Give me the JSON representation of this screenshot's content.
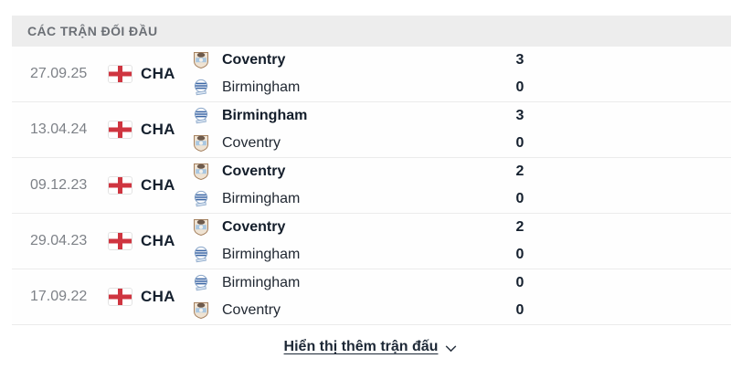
{
  "section": {
    "title": "CÁC TRẬN ĐỐI ĐẦU"
  },
  "matches": [
    {
      "date": "27.09.25",
      "league": {
        "code": "CHA",
        "flag": "england-flag-icon"
      },
      "teams": [
        {
          "name": "Coventry",
          "logo": "coventry-crest-icon",
          "score": "3",
          "winner": true
        },
        {
          "name": "Birmingham",
          "logo": "birmingham-crest-icon",
          "score": "0",
          "winner": false
        }
      ]
    },
    {
      "date": "13.04.24",
      "league": {
        "code": "CHA",
        "flag": "england-flag-icon"
      },
      "teams": [
        {
          "name": "Birmingham",
          "logo": "birmingham-crest-icon",
          "score": "3",
          "winner": true
        },
        {
          "name": "Coventry",
          "logo": "coventry-crest-icon",
          "score": "0",
          "winner": false
        }
      ]
    },
    {
      "date": "09.12.23",
      "league": {
        "code": "CHA",
        "flag": "england-flag-icon"
      },
      "teams": [
        {
          "name": "Coventry",
          "logo": "coventry-crest-icon",
          "score": "2",
          "winner": true
        },
        {
          "name": "Birmingham",
          "logo": "birmingham-crest-icon",
          "score": "0",
          "winner": false
        }
      ]
    },
    {
      "date": "29.04.23",
      "league": {
        "code": "CHA",
        "flag": "england-flag-icon"
      },
      "teams": [
        {
          "name": "Coventry",
          "logo": "coventry-crest-icon",
          "score": "2",
          "winner": true
        },
        {
          "name": "Birmingham",
          "logo": "birmingham-crest-icon",
          "score": "0",
          "winner": false
        }
      ]
    },
    {
      "date": "17.09.22",
      "league": {
        "code": "CHA",
        "flag": "england-flag-icon"
      },
      "teams": [
        {
          "name": "Birmingham",
          "logo": "birmingham-crest-icon",
          "score": "0",
          "winner": false
        },
        {
          "name": "Coventry",
          "logo": "coventry-crest-icon",
          "score": "0",
          "winner": false
        }
      ]
    }
  ],
  "show_more": {
    "label": "Hiển thị thêm trận đấu",
    "icon": "chevron-down-icon"
  },
  "colors": {
    "header_bg": "#ededed",
    "header_text": "#6c7076",
    "accent_red": "#cf3540",
    "date_text": "#7d8187",
    "dark_text": "#15202e",
    "separator": "#ebebeb",
    "link_text": "#1d2836",
    "birmingham_blue": "#3c67a5",
    "coventry_tan": "#a5815f"
  }
}
